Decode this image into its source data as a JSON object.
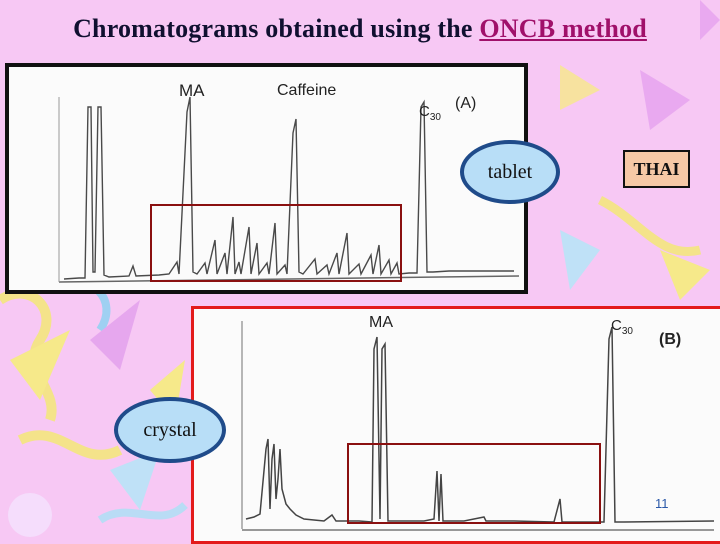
{
  "slide": {
    "title_prefix": "Chromatograms obtained using the ",
    "title_highlight": "ONCB method",
    "page_number": "11"
  },
  "panel_a": {
    "label": "(A)",
    "peak_ma": "MA",
    "peak_caffeine": "Caffeine",
    "peak_c30": "C",
    "peak_c30_sub": "30",
    "sample_label": "tablet"
  },
  "panel_b": {
    "label": "(B)",
    "peak_ma": "MA",
    "peak_c30": "C",
    "peak_c30_sub": "30",
    "sample_label": "crystal"
  },
  "tag": {
    "thai": "THAI"
  },
  "colors": {
    "background": "#f7c8f4",
    "title_highlight": "#a0106a",
    "panel_b_border": "#e31b1b",
    "highlight_box": "#8a1010",
    "oval_border": "#1f4b8a",
    "oval_fill": "#b8def7",
    "tag_fill": "#f6c9a6"
  }
}
